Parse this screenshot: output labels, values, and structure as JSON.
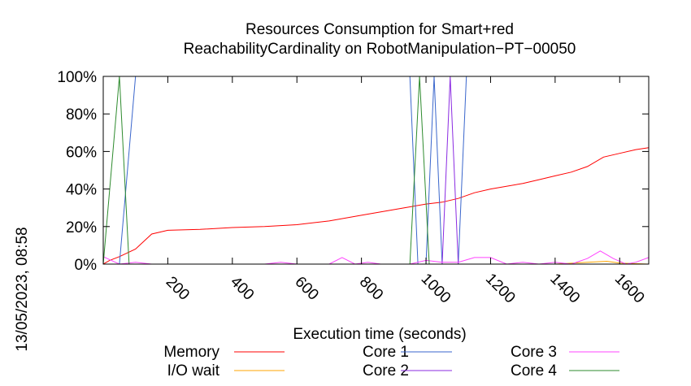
{
  "chart_data": {
    "type": "line",
    "title_line1": "Resources Consumption for Smart+red",
    "title_line2": "ReachabilityCardinality on RobotManipulation−PT−00050",
    "xlabel": "Execution time (seconds)",
    "ylabel": "",
    "side_label": "13/05/2023, 08:58",
    "xlim": [
      0,
      1690
    ],
    "ylim": [
      0,
      100
    ],
    "x_ticks": [
      {
        "value": 200,
        "label": "200"
      },
      {
        "value": 400,
        "label": "400"
      },
      {
        "value": 600,
        "label": "600"
      },
      {
        "value": 800,
        "label": "800"
      },
      {
        "value": 1000,
        "label": "1000"
      },
      {
        "value": 1200,
        "label": "1200"
      },
      {
        "value": 1400,
        "label": "1400"
      },
      {
        "value": 1600,
        "label": "1600"
      }
    ],
    "y_ticks": [
      {
        "value": 0,
        "label": "0%"
      },
      {
        "value": 20,
        "label": "20%"
      },
      {
        "value": 40,
        "label": "40%"
      },
      {
        "value": 60,
        "label": "60%"
      },
      {
        "value": 80,
        "label": "80%"
      },
      {
        "value": 100,
        "label": "100%"
      }
    ],
    "grid": false,
    "legend_position": "bottom",
    "series": [
      {
        "name": "Memory",
        "color": "#ff0000",
        "points": [
          [
            0,
            0
          ],
          [
            20,
            2
          ],
          [
            50,
            4
          ],
          [
            100,
            8
          ],
          [
            150,
            16
          ],
          [
            200,
            18
          ],
          [
            300,
            18.5
          ],
          [
            400,
            19.5
          ],
          [
            500,
            20
          ],
          [
            550,
            20.5
          ],
          [
            600,
            21
          ],
          [
            700,
            23
          ],
          [
            800,
            26
          ],
          [
            900,
            29
          ],
          [
            1000,
            32
          ],
          [
            1050,
            33
          ],
          [
            1100,
            35
          ],
          [
            1150,
            38
          ],
          [
            1200,
            40
          ],
          [
            1300,
            43
          ],
          [
            1350,
            45
          ],
          [
            1400,
            47
          ],
          [
            1450,
            49
          ],
          [
            1500,
            52
          ],
          [
            1550,
            57
          ],
          [
            1600,
            59
          ],
          [
            1650,
            61
          ],
          [
            1690,
            62
          ]
        ]
      },
      {
        "name": "I/O wait",
        "color": "#ffa500",
        "points": [
          [
            0,
            0
          ],
          [
            1400,
            0
          ],
          [
            1500,
            1
          ],
          [
            1560,
            1.5
          ],
          [
            1600,
            0.5
          ],
          [
            1690,
            0
          ]
        ]
      },
      {
        "name": "Core 1",
        "color": "#3a66cc",
        "points": [
          [
            0,
            0
          ],
          [
            50,
            0
          ],
          [
            100,
            100
          ],
          [
            950,
            100
          ],
          [
            975,
            0
          ],
          [
            1000,
            0
          ],
          [
            1025,
            100
          ],
          [
            1050,
            0
          ],
          [
            1075,
            0
          ],
          [
            1100,
            0
          ],
          [
            1125,
            100
          ],
          [
            1690,
            100
          ]
        ]
      },
      {
        "name": "Core 2",
        "color": "#8b2be2",
        "points": [
          [
            0,
            0
          ],
          [
            1050,
            0
          ],
          [
            1075,
            100
          ],
          [
            1100,
            0
          ],
          [
            1690,
            0
          ]
        ]
      },
      {
        "name": "Core 3",
        "color": "#ff44ff",
        "points": [
          [
            0,
            4
          ],
          [
            25,
            2
          ],
          [
            50,
            0
          ],
          [
            100,
            1
          ],
          [
            150,
            0
          ],
          [
            500,
            0
          ],
          [
            550,
            1
          ],
          [
            600,
            0
          ],
          [
            700,
            0
          ],
          [
            740,
            3.5
          ],
          [
            780,
            0
          ],
          [
            820,
            1
          ],
          [
            860,
            0
          ],
          [
            950,
            0
          ],
          [
            1000,
            2
          ],
          [
            1050,
            1
          ],
          [
            1100,
            1
          ],
          [
            1150,
            3.5
          ],
          [
            1200,
            3.5
          ],
          [
            1250,
            0
          ],
          [
            1300,
            1
          ],
          [
            1350,
            0
          ],
          [
            1400,
            1
          ],
          [
            1450,
            0
          ],
          [
            1500,
            3
          ],
          [
            1540,
            7
          ],
          [
            1580,
            3
          ],
          [
            1620,
            0
          ],
          [
            1650,
            1
          ],
          [
            1690,
            3.5
          ]
        ]
      },
      {
        "name": "Core 4",
        "color": "#2e8b2e",
        "points": [
          [
            0,
            0
          ],
          [
            50,
            100
          ],
          [
            80,
            0
          ],
          [
            100,
            0
          ],
          [
            950,
            0
          ],
          [
            980,
            100
          ],
          [
            1010,
            0
          ],
          [
            1690,
            0
          ]
        ]
      }
    ]
  }
}
